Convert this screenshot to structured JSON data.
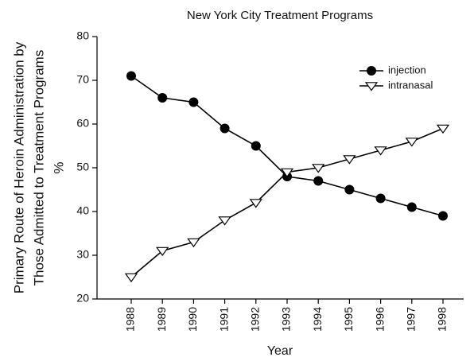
{
  "chart_data": {
    "type": "line",
    "title": "New York City Treatment Programs",
    "xlabel": "Year",
    "ylabel": [
      "Primary Route of Heroin Administration by",
      "Those Admitted to Treatment Programs",
      "%"
    ],
    "categories": [
      "1988",
      "1989",
      "1990",
      "1991",
      "1992",
      "1993",
      "1994",
      "1995",
      "1996",
      "1997",
      "1998"
    ],
    "series": [
      {
        "name": "injection",
        "color": "#000000",
        "marker": "circle",
        "values": [
          71,
          66,
          65,
          59,
          55,
          48,
          47,
          45,
          43,
          41,
          39
        ]
      },
      {
        "name": "intranasal",
        "color": "#000000",
        "marker": "triangle-down",
        "values": [
          25,
          31,
          33,
          38,
          42,
          49,
          50,
          52,
          54,
          56,
          59
        ]
      }
    ],
    "ylim": [
      20,
      80
    ],
    "yticks": [
      20,
      30,
      40,
      50,
      60,
      70,
      80
    ],
    "legend": "upper right",
    "grid": false
  }
}
